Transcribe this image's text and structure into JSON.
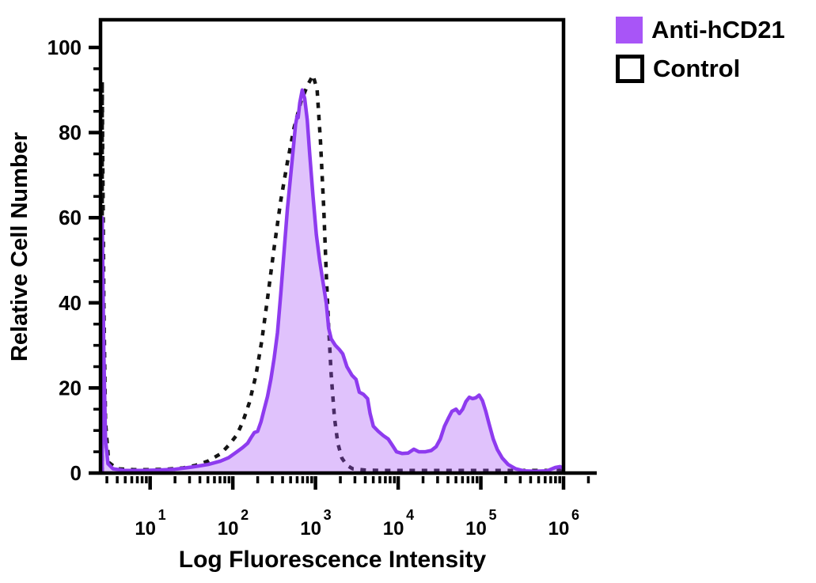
{
  "legend": {
    "items": [
      {
        "label": "Anti-hCD21",
        "swatch": "filled-square",
        "color": "#a855f7"
      },
      {
        "label": "Control",
        "swatch": "open-square",
        "color": "#000000"
      }
    ]
  },
  "colors": {
    "anti_hcd21_stroke": "#8e3bef",
    "anti_hcd21_fill": "rgba(168,85,247,0.36)",
    "control_stroke": "#141414",
    "axis": "#000000"
  },
  "chart_data": {
    "type": "line",
    "subtype": "flow-cytometry-histogram",
    "xlabel": "Log Fluorescence Intensity",
    "ylabel": "Relative Cell Number",
    "x_scale": "log10",
    "x_range_log": [
      0.4,
      6.0
    ],
    "y_range": [
      0,
      100
    ],
    "x_tick_base": "10",
    "x_tick_exponents": [
      1,
      2,
      3,
      4,
      5,
      6
    ],
    "y_ticks": [
      0,
      20,
      40,
      60,
      80,
      100
    ],
    "y_minor_step": 5,
    "grid": false,
    "legend_position": "top-right-outside",
    "series": [
      {
        "name": "Anti-hCD21",
        "style": "solid-filled",
        "points_log_x_y": [
          [
            0.42,
            0
          ],
          [
            0.42,
            60
          ],
          [
            0.44,
            28
          ],
          [
            0.46,
            8
          ],
          [
            0.49,
            2.2
          ],
          [
            0.55,
            1.0
          ],
          [
            0.7,
            0.6
          ],
          [
            0.9,
            0.6
          ],
          [
            1.1,
            0.7
          ],
          [
            1.3,
            0.9
          ],
          [
            1.5,
            1.4
          ],
          [
            1.7,
            2.0
          ],
          [
            1.85,
            2.8
          ],
          [
            1.95,
            3.6
          ],
          [
            2.05,
            5.0
          ],
          [
            2.12,
            6.0
          ],
          [
            2.18,
            7.0
          ],
          [
            2.22,
            8.3
          ],
          [
            2.26,
            9.5
          ],
          [
            2.3,
            9.8
          ],
          [
            2.34,
            12.0
          ],
          [
            2.38,
            15.0
          ],
          [
            2.42,
            18.0
          ],
          [
            2.46,
            22.0
          ],
          [
            2.5,
            27.0
          ],
          [
            2.54,
            33.0
          ],
          [
            2.58,
            42.0
          ],
          [
            2.62,
            52.0
          ],
          [
            2.66,
            62.0
          ],
          [
            2.7,
            70.0
          ],
          [
            2.73,
            76.0
          ],
          [
            2.76,
            82.0
          ],
          [
            2.78,
            84.0
          ],
          [
            2.79,
            83.5
          ],
          [
            2.81,
            87.0
          ],
          [
            2.84,
            90.0
          ],
          [
            2.87,
            88.0
          ],
          [
            2.9,
            83.0
          ],
          [
            2.93,
            75.0
          ],
          [
            2.97,
            65.0
          ],
          [
            3.01,
            56.0
          ],
          [
            3.05,
            50.0
          ],
          [
            3.09,
            45.0
          ],
          [
            3.13,
            40.0
          ],
          [
            3.16,
            34.0
          ],
          [
            3.19,
            31.5
          ],
          [
            3.24,
            30.0
          ],
          [
            3.29,
            29.0
          ],
          [
            3.33,
            28.0
          ],
          [
            3.38,
            25.0
          ],
          [
            3.44,
            23.0
          ],
          [
            3.49,
            22.0
          ],
          [
            3.53,
            19.0
          ],
          [
            3.58,
            18.5
          ],
          [
            3.63,
            17.5
          ],
          [
            3.66,
            14.0
          ],
          [
            3.7,
            11.0
          ],
          [
            3.76,
            9.8
          ],
          [
            3.82,
            8.8
          ],
          [
            3.88,
            8.0
          ],
          [
            3.93,
            6.5
          ],
          [
            3.98,
            5.0
          ],
          [
            4.05,
            4.6
          ],
          [
            4.12,
            4.7
          ],
          [
            4.19,
            5.6
          ],
          [
            4.25,
            5.0
          ],
          [
            4.33,
            5.0
          ],
          [
            4.4,
            5.3
          ],
          [
            4.46,
            6.2
          ],
          [
            4.51,
            8.0
          ],
          [
            4.56,
            11.0
          ],
          [
            4.61,
            13.0
          ],
          [
            4.65,
            14.5
          ],
          [
            4.7,
            15.0
          ],
          [
            4.74,
            14.0
          ],
          [
            4.78,
            15.0
          ],
          [
            4.82,
            16.8
          ],
          [
            4.86,
            17.8
          ],
          [
            4.9,
            17.5
          ],
          [
            4.94,
            17.7
          ],
          [
            4.98,
            18.3
          ],
          [
            5.02,
            17.0
          ],
          [
            5.06,
            14.5
          ],
          [
            5.1,
            11.5
          ],
          [
            5.15,
            8.0
          ],
          [
            5.2,
            5.5
          ],
          [
            5.26,
            3.5
          ],
          [
            5.33,
            2.0
          ],
          [
            5.42,
            1.0
          ],
          [
            5.52,
            0.5
          ],
          [
            5.65,
            0.4
          ],
          [
            5.8,
            0.5
          ],
          [
            5.9,
            1.3
          ],
          [
            5.96,
            1.5
          ],
          [
            6.0,
            1.0
          ]
        ]
      },
      {
        "name": "Control",
        "style": "dashed",
        "points_log_x_y": [
          [
            0.42,
            0
          ],
          [
            0.42,
            92
          ],
          [
            0.44,
            40
          ],
          [
            0.46,
            12
          ],
          [
            0.5,
            2.5
          ],
          [
            0.6,
            1.0
          ],
          [
            0.8,
            0.8
          ],
          [
            1.0,
            0.8
          ],
          [
            1.2,
            0.9
          ],
          [
            1.4,
            1.2
          ],
          [
            1.55,
            1.8
          ],
          [
            1.7,
            2.8
          ],
          [
            1.85,
            4.5
          ],
          [
            1.95,
            6.5
          ],
          [
            2.05,
            9.0
          ],
          [
            2.12,
            12.0
          ],
          [
            2.2,
            16.5
          ],
          [
            2.28,
            23.0
          ],
          [
            2.35,
            31.0
          ],
          [
            2.42,
            41.0
          ],
          [
            2.5,
            53.0
          ],
          [
            2.58,
            64.0
          ],
          [
            2.66,
            73.0
          ],
          [
            2.74,
            81.0
          ],
          [
            2.82,
            87.0
          ],
          [
            2.9,
            91.0
          ],
          [
            2.97,
            93.5
          ],
          [
            3.02,
            90.0
          ],
          [
            3.06,
            78.0
          ],
          [
            3.1,
            62.0
          ],
          [
            3.13,
            47.0
          ],
          [
            3.16,
            34.0
          ],
          [
            3.19,
            23.0
          ],
          [
            3.23,
            13.0
          ],
          [
            3.27,
            7.0
          ],
          [
            3.32,
            3.5
          ],
          [
            3.38,
            1.8
          ],
          [
            3.45,
            1.0
          ],
          [
            3.6,
            0.7
          ],
          [
            3.8,
            0.6
          ],
          [
            4.0,
            0.6
          ],
          [
            4.25,
            0.6
          ],
          [
            4.5,
            0.6
          ],
          [
            4.75,
            0.6
          ],
          [
            5.0,
            0.6
          ],
          [
            5.25,
            0.6
          ],
          [
            5.5,
            0.6
          ],
          [
            5.75,
            0.6
          ],
          [
            6.0,
            0.6
          ]
        ]
      }
    ]
  }
}
